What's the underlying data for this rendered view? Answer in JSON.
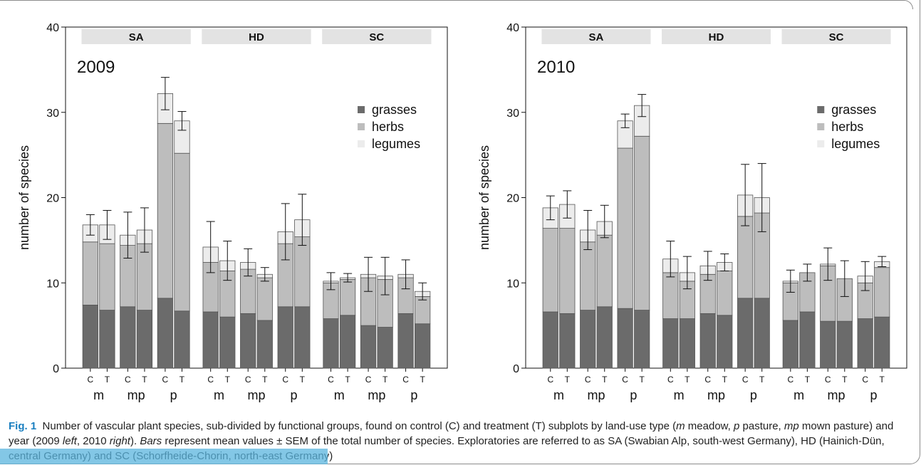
{
  "chart_data": [
    {
      "type": "bar",
      "stacked": true,
      "year": "2009",
      "ylabel": "number of species",
      "ylim": [
        0,
        40
      ],
      "yticks": [
        0,
        10,
        20,
        30,
        40
      ],
      "legend": [
        "grasses",
        "herbs",
        "legumes"
      ],
      "colors": {
        "grasses": "#6b6b6b",
        "herbs": "#bdbdbd",
        "legumes": "#ececec"
      },
      "panels": [
        "SA",
        "HD",
        "SC"
      ],
      "land_use": [
        "m",
        "mp",
        "p"
      ],
      "treatments": [
        "C",
        "T"
      ],
      "bars": [
        {
          "panel": "SA",
          "land_use": "m",
          "treatment": "C",
          "grasses": 7.4,
          "herbs": 7.4,
          "legumes": 2.0,
          "total": 16.8,
          "sem": 1.2
        },
        {
          "panel": "SA",
          "land_use": "m",
          "treatment": "T",
          "grasses": 6.8,
          "herbs": 7.8,
          "legumes": 2.2,
          "total": 16.8,
          "sem": 1.7
        },
        {
          "panel": "SA",
          "land_use": "mp",
          "treatment": "C",
          "grasses": 7.2,
          "herbs": 7.2,
          "legumes": 1.2,
          "total": 15.6,
          "sem": 2.7
        },
        {
          "panel": "SA",
          "land_use": "mp",
          "treatment": "T",
          "grasses": 6.8,
          "herbs": 7.8,
          "legumes": 1.6,
          "total": 16.2,
          "sem": 2.6
        },
        {
          "panel": "SA",
          "land_use": "p",
          "treatment": "C",
          "grasses": 8.2,
          "herbs": 20.5,
          "legumes": 3.5,
          "total": 32.2,
          "sem": 1.9
        },
        {
          "panel": "SA",
          "land_use": "p",
          "treatment": "T",
          "grasses": 6.7,
          "herbs": 18.5,
          "legumes": 3.8,
          "total": 29.0,
          "sem": 1.1
        },
        {
          "panel": "HD",
          "land_use": "m",
          "treatment": "C",
          "grasses": 6.6,
          "herbs": 5.8,
          "legumes": 1.8,
          "total": 14.2,
          "sem": 3.0
        },
        {
          "panel": "HD",
          "land_use": "m",
          "treatment": "T",
          "grasses": 6.0,
          "herbs": 5.4,
          "legumes": 1.2,
          "total": 12.6,
          "sem": 2.3
        },
        {
          "panel": "HD",
          "land_use": "mp",
          "treatment": "C",
          "grasses": 6.4,
          "herbs": 5.2,
          "legumes": 0.8,
          "total": 12.4,
          "sem": 1.6
        },
        {
          "panel": "HD",
          "land_use": "mp",
          "treatment": "T",
          "grasses": 5.6,
          "herbs": 5.0,
          "legumes": 0.4,
          "total": 11.0,
          "sem": 0.8
        },
        {
          "panel": "HD",
          "land_use": "p",
          "treatment": "C",
          "grasses": 7.2,
          "herbs": 7.4,
          "legumes": 1.4,
          "total": 16.0,
          "sem": 3.3
        },
        {
          "panel": "HD",
          "land_use": "p",
          "treatment": "T",
          "grasses": 7.2,
          "herbs": 8.2,
          "legumes": 2.0,
          "total": 17.4,
          "sem": 3.0
        },
        {
          "panel": "SC",
          "land_use": "m",
          "treatment": "C",
          "grasses": 5.8,
          "herbs": 4.2,
          "legumes": 0.2,
          "total": 10.2,
          "sem": 1.0
        },
        {
          "panel": "SC",
          "land_use": "m",
          "treatment": "T",
          "grasses": 6.2,
          "herbs": 4.2,
          "legumes": 0.2,
          "total": 10.6,
          "sem": 0.5
        },
        {
          "panel": "SC",
          "land_use": "mp",
          "treatment": "C",
          "grasses": 5.0,
          "herbs": 5.6,
          "legumes": 0.4,
          "total": 11.0,
          "sem": 2.0
        },
        {
          "panel": "SC",
          "land_use": "mp",
          "treatment": "T",
          "grasses": 4.8,
          "herbs": 5.6,
          "legumes": 0.4,
          "total": 10.8,
          "sem": 2.2
        },
        {
          "panel": "SC",
          "land_use": "p",
          "treatment": "C",
          "grasses": 6.4,
          "herbs": 4.2,
          "legumes": 0.4,
          "total": 11.0,
          "sem": 1.7
        },
        {
          "panel": "SC",
          "land_use": "p",
          "treatment": "T",
          "grasses": 5.2,
          "herbs": 3.2,
          "legumes": 0.6,
          "total": 9.0,
          "sem": 1.0
        }
      ]
    },
    {
      "type": "bar",
      "stacked": true,
      "year": "2010",
      "ylabel": "number of species",
      "ylim": [
        0,
        40
      ],
      "yticks": [
        0,
        10,
        20,
        30,
        40
      ],
      "legend": [
        "grasses",
        "herbs",
        "legumes"
      ],
      "colors": {
        "grasses": "#6b6b6b",
        "herbs": "#bdbdbd",
        "legumes": "#ececec"
      },
      "panels": [
        "SA",
        "HD",
        "SC"
      ],
      "land_use": [
        "m",
        "mp",
        "p"
      ],
      "treatments": [
        "C",
        "T"
      ],
      "bars": [
        {
          "panel": "SA",
          "land_use": "m",
          "treatment": "C",
          "grasses": 6.6,
          "herbs": 9.8,
          "legumes": 2.4,
          "total": 18.8,
          "sem": 1.4
        },
        {
          "panel": "SA",
          "land_use": "m",
          "treatment": "T",
          "grasses": 6.4,
          "herbs": 10.0,
          "legumes": 2.8,
          "total": 19.2,
          "sem": 1.6
        },
        {
          "panel": "SA",
          "land_use": "mp",
          "treatment": "C",
          "grasses": 6.8,
          "herbs": 8.0,
          "legumes": 1.4,
          "total": 16.2,
          "sem": 2.3
        },
        {
          "panel": "SA",
          "land_use": "mp",
          "treatment": "T",
          "grasses": 7.2,
          "herbs": 8.4,
          "legumes": 1.6,
          "total": 17.2,
          "sem": 1.9
        },
        {
          "panel": "SA",
          "land_use": "p",
          "treatment": "C",
          "grasses": 7.0,
          "herbs": 18.8,
          "legumes": 3.2,
          "total": 29.0,
          "sem": 0.8
        },
        {
          "panel": "SA",
          "land_use": "p",
          "treatment": "T",
          "grasses": 6.8,
          "herbs": 20.4,
          "legumes": 3.6,
          "total": 30.8,
          "sem": 1.3
        },
        {
          "panel": "HD",
          "land_use": "m",
          "treatment": "C",
          "grasses": 5.8,
          "herbs": 5.4,
          "legumes": 1.6,
          "total": 12.8,
          "sem": 2.1
        },
        {
          "panel": "HD",
          "land_use": "m",
          "treatment": "T",
          "grasses": 5.8,
          "herbs": 4.4,
          "legumes": 1.0,
          "total": 11.2,
          "sem": 1.9
        },
        {
          "panel": "HD",
          "land_use": "mp",
          "treatment": "C",
          "grasses": 6.4,
          "herbs": 4.6,
          "legumes": 1.0,
          "total": 12.0,
          "sem": 1.7
        },
        {
          "panel": "HD",
          "land_use": "mp",
          "treatment": "T",
          "grasses": 6.2,
          "herbs": 5.2,
          "legumes": 1.0,
          "total": 12.4,
          "sem": 1.0
        },
        {
          "panel": "HD",
          "land_use": "p",
          "treatment": "C",
          "grasses": 8.2,
          "herbs": 9.6,
          "legumes": 2.5,
          "total": 20.3,
          "sem": 3.6
        },
        {
          "panel": "HD",
          "land_use": "p",
          "treatment": "T",
          "grasses": 8.2,
          "herbs": 10.0,
          "legumes": 1.8,
          "total": 20.0,
          "sem": 4.0
        },
        {
          "panel": "SC",
          "land_use": "m",
          "treatment": "C",
          "grasses": 5.6,
          "herbs": 4.4,
          "legumes": 0.2,
          "total": 10.2,
          "sem": 1.3
        },
        {
          "panel": "SC",
          "land_use": "m",
          "treatment": "T",
          "grasses": 6.6,
          "herbs": 4.6,
          "legumes": 0.0,
          "total": 11.2,
          "sem": 1.0
        },
        {
          "panel": "SC",
          "land_use": "mp",
          "treatment": "C",
          "grasses": 5.5,
          "herbs": 6.5,
          "legumes": 0.2,
          "total": 12.2,
          "sem": 1.9
        },
        {
          "panel": "SC",
          "land_use": "mp",
          "treatment": "T",
          "grasses": 5.5,
          "herbs": 5.0,
          "legumes": 0.0,
          "total": 10.5,
          "sem": 2.1
        },
        {
          "panel": "SC",
          "land_use": "p",
          "treatment": "C",
          "grasses": 5.8,
          "herbs": 4.2,
          "legumes": 0.8,
          "total": 10.8,
          "sem": 1.7
        },
        {
          "panel": "SC",
          "land_use": "p",
          "treatment": "T",
          "grasses": 6.0,
          "herbs": 5.8,
          "legumes": 0.7,
          "total": 12.5,
          "sem": 0.6
        }
      ]
    }
  ],
  "caption": {
    "fig_label": "Fig. 1",
    "seg1": "Number of vascular plant species, sub-divided by functional groups, found on control (C) and treatment (T) subplots by land-use type (",
    "m_italic": "m",
    "seg2": " meadow, ",
    "p_italic": "p",
    "seg3": " pasture, ",
    "mp_italic": "mp",
    "seg4": " mown pasture) and year (2009 ",
    "left_italic": "left",
    "seg5": ", 2010 ",
    "right_italic": "right",
    "seg6": "). ",
    "bars_italic": "Bars",
    "seg7": " represent mean values ± SEM of the total number of species. Exploratories are referred to as SA (Swabian Alp, south-west Germany), HD (Hainich-Dün, central Germany) and SC (Schorfheide-Chorin, north-east Germany)"
  }
}
